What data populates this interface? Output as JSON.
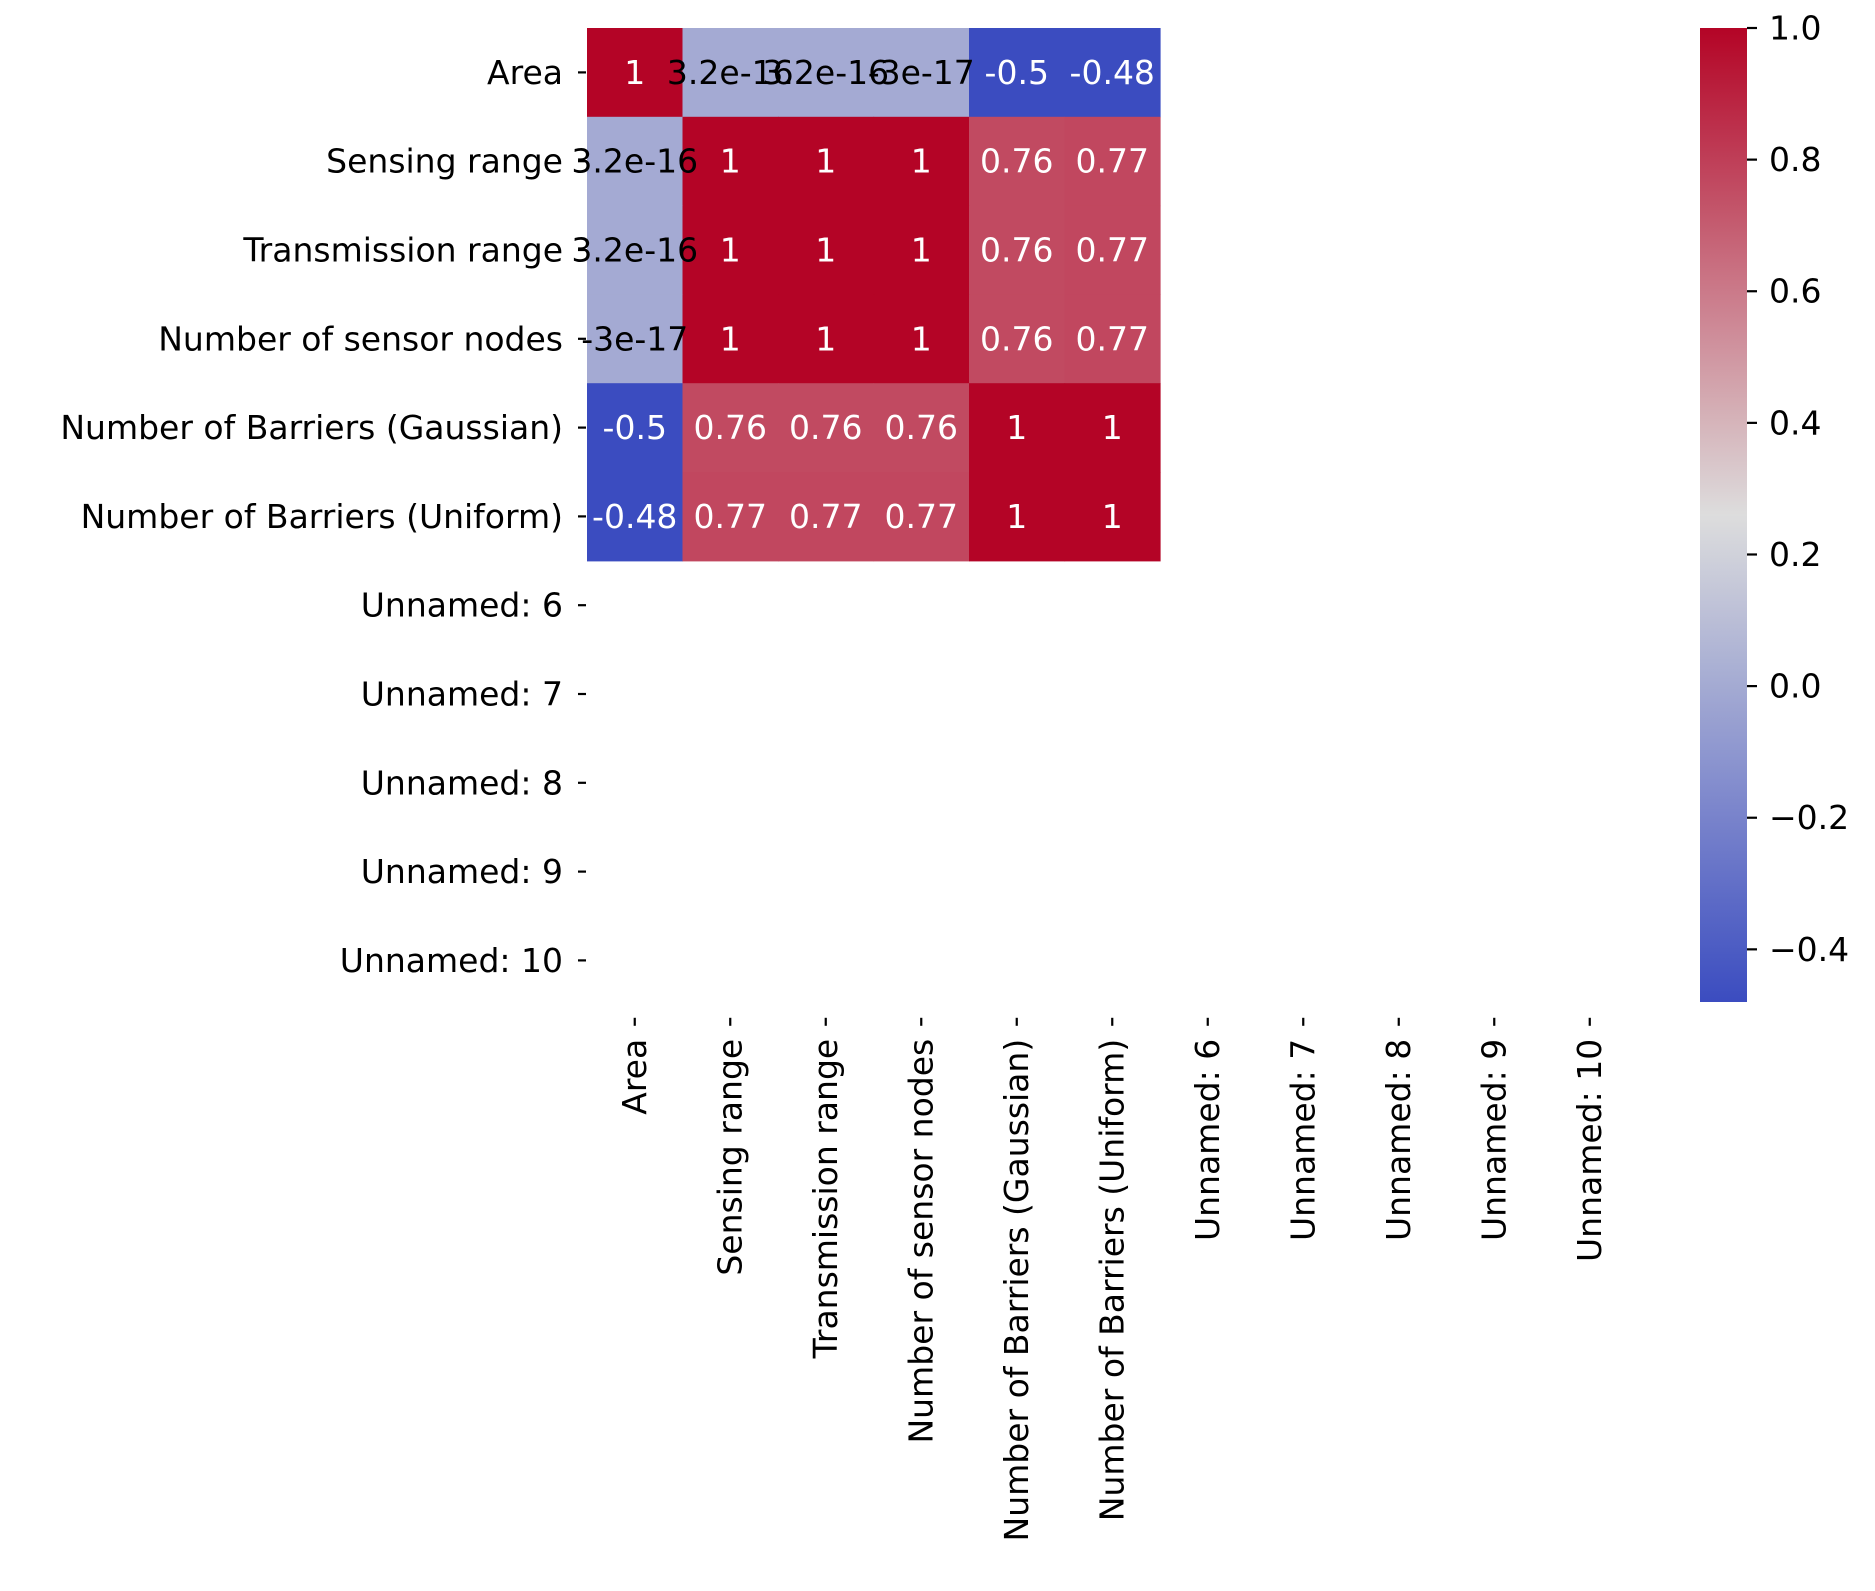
{
  "chart_data": {
    "type": "heatmap",
    "title": "",
    "xlabel": "",
    "ylabel": "",
    "x_labels": [
      "Area",
      "Sensing range",
      "Transmission range",
      "Number of sensor nodes",
      "Number of Barriers (Gaussian)",
      "Number of Barriers (Uniform)",
      "Unnamed: 6",
      "Unnamed: 7",
      "Unnamed: 8",
      "Unnamed: 9",
      "Unnamed: 10"
    ],
    "y_labels": [
      "Area",
      "Sensing range",
      "Transmission range",
      "Number of sensor nodes",
      "Number of Barriers (Gaussian)",
      "Number of Barriers (Uniform)",
      "Unnamed: 6",
      "Unnamed: 7",
      "Unnamed: 8",
      "Unnamed: 9",
      "Unnamed: 10"
    ],
    "values": [
      [
        1,
        3.2e-16,
        3.2e-16,
        -3e-17,
        -0.5,
        -0.48,
        null,
        null,
        null,
        null,
        null
      ],
      [
        3.2e-16,
        1,
        1,
        1,
        0.76,
        0.77,
        null,
        null,
        null,
        null,
        null
      ],
      [
        3.2e-16,
        1,
        1,
        1,
        0.76,
        0.77,
        null,
        null,
        null,
        null,
        null
      ],
      [
        -3e-17,
        1,
        1,
        1,
        0.76,
        0.77,
        null,
        null,
        null,
        null,
        null
      ],
      [
        -0.5,
        0.76,
        0.76,
        0.76,
        1,
        1,
        null,
        null,
        null,
        null,
        null
      ],
      [
        -0.48,
        0.77,
        0.77,
        0.77,
        1,
        1,
        null,
        null,
        null,
        null,
        null
      ],
      [
        null,
        null,
        null,
        null,
        null,
        null,
        null,
        null,
        null,
        null,
        null
      ],
      [
        null,
        null,
        null,
        null,
        null,
        null,
        null,
        null,
        null,
        null,
        null
      ],
      [
        null,
        null,
        null,
        null,
        null,
        null,
        null,
        null,
        null,
        null,
        null
      ],
      [
        null,
        null,
        null,
        null,
        null,
        null,
        null,
        null,
        null,
        null,
        null
      ],
      [
        null,
        null,
        null,
        null,
        null,
        null,
        null,
        null,
        null,
        null,
        null
      ]
    ],
    "annotations": [
      [
        "1",
        "3.2e-16",
        "3.2e-16",
        "-3e-17",
        "-0.5",
        "-0.48",
        "",
        "",
        "",
        "",
        ""
      ],
      [
        "3.2e-16",
        "1",
        "1",
        "1",
        "0.76",
        "0.77",
        "",
        "",
        "",
        "",
        ""
      ],
      [
        "3.2e-16",
        "1",
        "1",
        "1",
        "0.76",
        "0.77",
        "",
        "",
        "",
        "",
        ""
      ],
      [
        "-3e-17",
        "1",
        "1",
        "1",
        "0.76",
        "0.77",
        "",
        "",
        "",
        "",
        ""
      ],
      [
        "-0.5",
        "0.76",
        "0.76",
        "0.76",
        "1",
        "1",
        "",
        "",
        "",
        "",
        ""
      ],
      [
        "-0.48",
        "0.77",
        "0.77",
        "0.77",
        "1",
        "1",
        "",
        "",
        "",
        "",
        ""
      ],
      [
        "",
        "",
        "",
        "",
        "",
        "",
        "",
        "",
        "",
        "",
        ""
      ],
      [
        "",
        "",
        "",
        "",
        "",
        "",
        "",
        "",
        "",
        "",
        ""
      ],
      [
        "",
        "",
        "",
        "",
        "",
        "",
        "",
        "",
        "",
        "",
        ""
      ],
      [
        "",
        "",
        "",
        "",
        "",
        "",
        "",
        "",
        "",
        "",
        ""
      ],
      [
        "",
        "",
        "",
        "",
        "",
        "",
        "",
        "",
        "",
        "",
        ""
      ]
    ],
    "colormap": "coolwarm",
    "colorbar": {
      "vmin": -0.48,
      "vmax": 1.0,
      "ticks": [
        -0.4,
        -0.2,
        0.0,
        0.2,
        0.4,
        0.6,
        0.8,
        1.0
      ],
      "tick_labels": [
        "−0.4",
        "−0.2",
        "0.0",
        "0.2",
        "0.4",
        "0.6",
        "0.8",
        "1.0"
      ]
    },
    "colors": {
      "cold": "#3b4cc0",
      "neutral": "#dddddd",
      "hot": "#b40426",
      "text_light": "#ffffff",
      "text_dark": "#000000"
    }
  }
}
